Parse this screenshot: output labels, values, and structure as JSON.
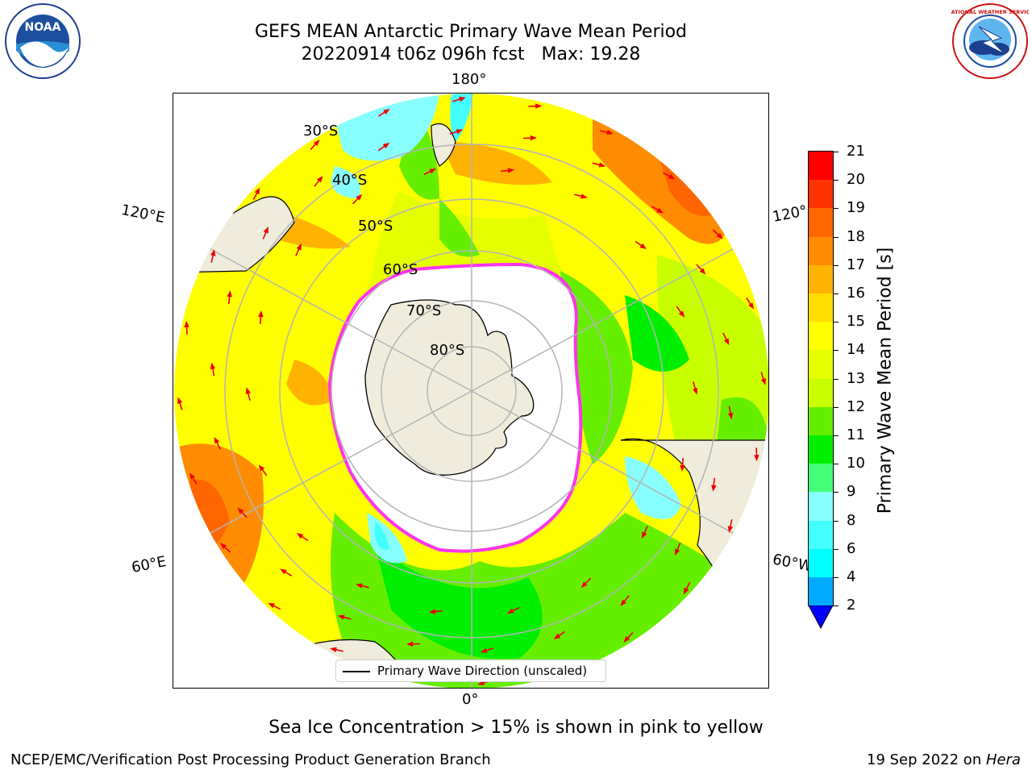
{
  "header": {
    "title_line1": "GEFS MEAN Antarctic Primary Wave Mean Period",
    "title_line2": "20220914 t06z 096h fcst   Max: 19.28"
  },
  "logos": {
    "noaa_text": "NOAA",
    "nws_text": "NATIONAL WEATHER SERVICE"
  },
  "map": {
    "projection": "south-polar-stereographic",
    "longitude_labels": {
      "top": "180°",
      "bottom": "0°",
      "upper_left": "120°E",
      "upper_right": "120°",
      "lower_left": "60°E",
      "lower_right": "60°W"
    },
    "latitude_labels": [
      "30°S",
      "40°S",
      "50°S",
      "60°S",
      "70°S",
      "80°S"
    ],
    "legend_label": "Primary Wave Direction (unscaled)",
    "ice_color": "#ff33ee",
    "land_color": "#efecdc",
    "grid_color": "#b4b4b4",
    "arrow_color": "#ee0000"
  },
  "colorbar": {
    "title": "Primary Wave Mean Period [s]",
    "ticks": [
      "21",
      "20",
      "19",
      "18",
      "17",
      "16",
      "15",
      "14",
      "13",
      "12",
      "11",
      "10",
      "9",
      "8",
      "6",
      "4",
      "2"
    ],
    "levels": [
      {
        "from": 20,
        "to": 21,
        "color": "#ff0000"
      },
      {
        "from": 19,
        "to": 20,
        "color": "#ff3300"
      },
      {
        "from": 18,
        "to": 19,
        "color": "#ff6600"
      },
      {
        "from": 17,
        "to": 18,
        "color": "#ff8c00"
      },
      {
        "from": 16,
        "to": 17,
        "color": "#ffb300"
      },
      {
        "from": 15,
        "to": 16,
        "color": "#ffdd00"
      },
      {
        "from": 14,
        "to": 15,
        "color": "#ffff00"
      },
      {
        "from": 13,
        "to": 14,
        "color": "#e6ff00"
      },
      {
        "from": 12,
        "to": 13,
        "color": "#c8ff00"
      },
      {
        "from": 11,
        "to": 12,
        "color": "#66ee00"
      },
      {
        "from": 10,
        "to": 11,
        "color": "#00ee00"
      },
      {
        "from": 9,
        "to": 10,
        "color": "#44ff77"
      },
      {
        "from": 8,
        "to": 9,
        "color": "#88ffff"
      },
      {
        "from": 6,
        "to": 8,
        "color": "#44ffff"
      },
      {
        "from": 4,
        "to": 6,
        "color": "#00ffff"
      },
      {
        "from": 2,
        "to": 4,
        "color": "#00aaff"
      }
    ],
    "extend_below_color": "#0000ff"
  },
  "footer": {
    "note": "Sea Ice Concentration > 15% is shown in pink to yellow",
    "left": "NCEP/EMC/Verification Post Processing Product Generation Branch",
    "right_date": "19 Sep 2022 on ",
    "right_host": "Hera"
  }
}
